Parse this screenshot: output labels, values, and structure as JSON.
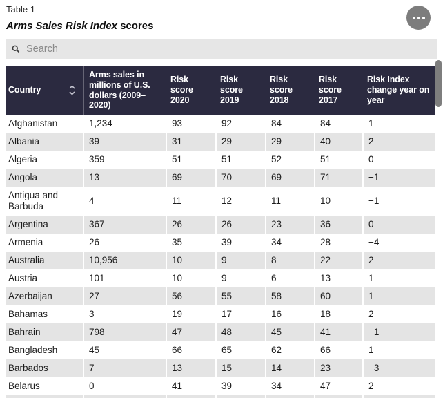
{
  "header": {
    "table_label": "Table 1",
    "title_italic": "Arms Sales Risk Index",
    "title_rest": " scores",
    "menu_icon": "ellipsis-icon"
  },
  "search": {
    "placeholder": "Search",
    "value": "",
    "icon": "search-icon"
  },
  "table": {
    "columns": [
      {
        "label": "Country",
        "sortable": true,
        "sort_icon": "sort-up-down-icon"
      },
      {
        "label": "Arms sales in millions of U.S. dollars (2009–2020)",
        "sortable": false
      },
      {
        "label": "Risk score 2020",
        "sortable": false
      },
      {
        "label": "Risk score 2019",
        "sortable": false
      },
      {
        "label": "Risk score 2018",
        "sortable": false
      },
      {
        "label": "Risk score 2017",
        "sortable": false
      },
      {
        "label": "Risk Index change year on year",
        "sortable": false
      }
    ],
    "rows": [
      [
        "Afghanistan",
        "1,234",
        "93",
        "92",
        "84",
        "84",
        "1"
      ],
      [
        "Albania",
        "39",
        "31",
        "29",
        "29",
        "40",
        "2"
      ],
      [
        "Algeria",
        "359",
        "51",
        "51",
        "52",
        "51",
        "0"
      ],
      [
        "Angola",
        "13",
        "69",
        "70",
        "69",
        "71",
        "−1"
      ],
      [
        "Antigua and Barbuda",
        "4",
        "11",
        "12",
        "11",
        "10",
        "−1"
      ],
      [
        "Argentina",
        "367",
        "26",
        "26",
        "23",
        "36",
        "0"
      ],
      [
        "Armenia",
        "26",
        "35",
        "39",
        "34",
        "28",
        "−4"
      ],
      [
        "Australia",
        "10,956",
        "10",
        "9",
        "8",
        "22",
        "2"
      ],
      [
        "Austria",
        "101",
        "10",
        "9",
        "6",
        "13",
        "1"
      ],
      [
        "Azerbaijan",
        "27",
        "56",
        "55",
        "58",
        "60",
        "1"
      ],
      [
        "Bahamas",
        "3",
        "19",
        "17",
        "16",
        "18",
        "2"
      ],
      [
        "Bahrain",
        "798",
        "47",
        "48",
        "45",
        "41",
        "−1"
      ],
      [
        "Bangladesh",
        "45",
        "66",
        "65",
        "62",
        "66",
        "1"
      ],
      [
        "Barbados",
        "7",
        "13",
        "15",
        "14",
        "23",
        "−3"
      ],
      [
        "Belarus",
        "0",
        "41",
        "39",
        "34",
        "47",
        "2"
      ]
    ],
    "truncated_next_row": true
  },
  "colors": {
    "header_bg": "#2b2a40",
    "header_text": "#ffffff",
    "row_alt_bg": "#e4e4e4",
    "search_bg": "#e6e6e6",
    "menu_button_bg": "#7d7d7d",
    "scrollbar_thumb": "#7e7e7e"
  }
}
